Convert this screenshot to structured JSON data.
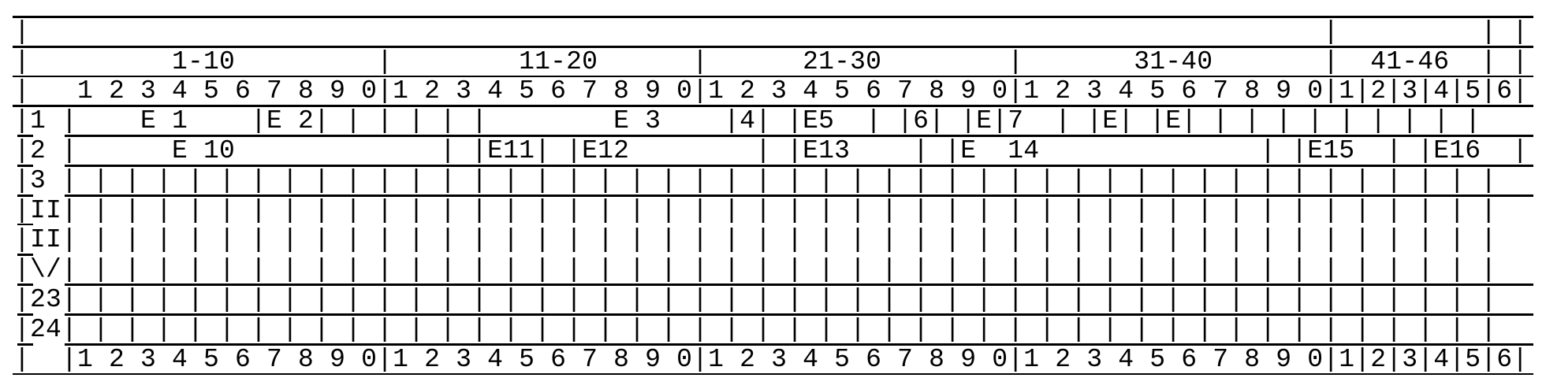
{
  "colors": {
    "text": "#000000",
    "background": "#ffffff"
  },
  "grid": {
    "rows": [
      "|                                                                                  |         | |",
      "|         1-10         |        11-20      |      21-30        |       31-40       |  41-46  | |",
      "|   1 2 3 4 5 6 7 8 9 0|1 2 3 4 5 6 7 8 9 0|1 2 3 4 5 6 7 8 9 0|1 2 3 4 5 6 7 8 9 0|1|2|3|4|5|6|",
      "|1 |    E 1    |E 2| | | | | |        E 3    |4| |E5  | |6| |E|7  | |E| |E| | | | | | | | | |",
      "|2 |      E 10             | |E11| |E12        | |E13    | |E  14              | |E15  | |E16  |",
      "|3 | | | | | | | | | | | | | | | | | | | | | | | | | | | | | | | | | | | | | | | | | | | | | |",
      "|II| | | | | | | | | | | | | | | | | | | | | | | | | | | | | | | | | | | | | | | | | | | | | |",
      "|II| | | | | | | | | | | | | | | | | | | | | | | | | | | | | | | | | | | | | | | | | | | | | |",
      "|\\/| | | | | | | | | | | | | | | | | | | | | | | | | | | | | | | | | | | | | | | | | | | | | |",
      "|23| | | | | | | | | | | | | | | | | | | | | | | | | | | | | | | | | | | | | | | | | | | | | |",
      "|24| | | | | | | | | | | | | | | | | | | | | | | | | | | | | | | | | | | | | | | | | | | | | |",
      "|  |1 2 3 4 5 6 7 8 9 0|1 2 3 4 5 6 7 8 9 0|1 2 3 4 5 6 7 8 9 0|1 2 3 4 5 6 7 8 9 0|1|2|3|4|5|6|"
    ]
  }
}
